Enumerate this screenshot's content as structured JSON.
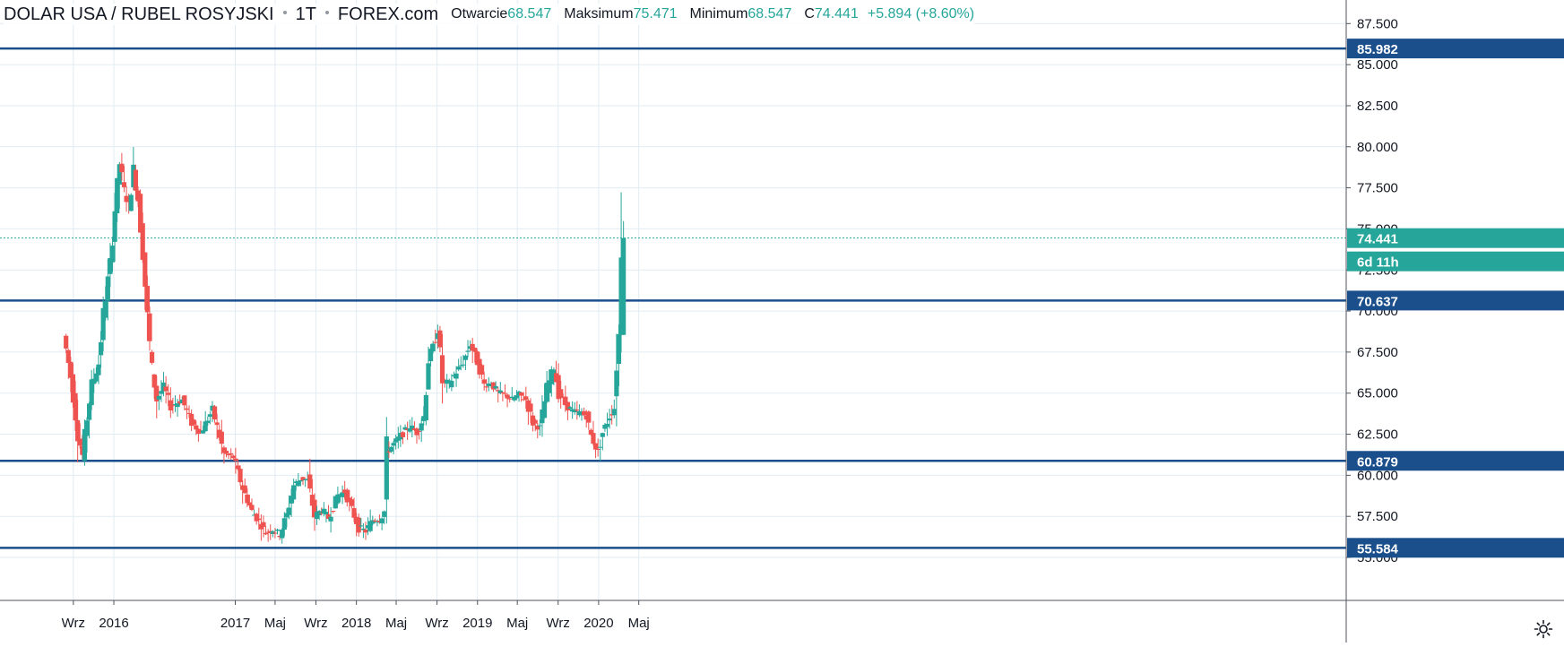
{
  "header": {
    "symbol": "DOLAR USA / RUBEL ROSYJSKI",
    "interval": "1T",
    "exchange": "FOREX.com",
    "open_label": "Otwarcie",
    "open_value": "68.547",
    "high_label": "Maksimum",
    "high_value": "75.471",
    "low_label": "Minimum",
    "low_value": "68.547",
    "close_label": "C",
    "close_value": "74.441",
    "change": "+5.894 (+8.60%)"
  },
  "countdown": "6d 11h",
  "colors": {
    "up": "#26a69a",
    "down": "#ef5350",
    "level_line": "#1b4f8c",
    "grid": "#e1ecf2",
    "axis_text": "#131722"
  },
  "icons": {
    "settings": "gear-icon"
  },
  "chart_data": {
    "type": "candlestick",
    "timeframe": "weekly",
    "y_axis": {
      "range": [
        52.5,
        88.5
      ],
      "ticks": [
        "55.000",
        "57.500",
        "60.000",
        "62.500",
        "65.000",
        "67.500",
        "70.000",
        "72.500",
        "75.000",
        "77.500",
        "80.000",
        "82.500",
        "85.000",
        "87.500"
      ]
    },
    "x_axis": {
      "ticks": [
        {
          "label": "Wrz",
          "date": "2015-09-01"
        },
        {
          "label": "2016",
          "date": "2016-01-01"
        },
        {
          "label": "2017",
          "date": "2017-01-01"
        },
        {
          "label": "Maj",
          "date": "2017-05-01"
        },
        {
          "label": "Wrz",
          "date": "2017-09-01"
        },
        {
          "label": "2018",
          "date": "2018-01-01"
        },
        {
          "label": "Maj",
          "date": "2018-05-01"
        },
        {
          "label": "Wrz",
          "date": "2018-09-01"
        },
        {
          "label": "2019",
          "date": "2019-01-01"
        },
        {
          "label": "Maj",
          "date": "2019-05-01"
        },
        {
          "label": "Wrz",
          "date": "2019-09-01"
        },
        {
          "label": "2020",
          "date": "2020-01-01"
        },
        {
          "label": "Maj",
          "date": "2020-05-01"
        }
      ]
    },
    "grid": true,
    "levels": [
      {
        "value": 85.982,
        "label": "85.982"
      },
      {
        "value": 70.637,
        "label": "70.637"
      },
      {
        "value": 60.879,
        "label": "60.879"
      },
      {
        "value": 55.584,
        "label": "55.584"
      }
    ],
    "last_price": {
      "value": 74.441,
      "label": "74.441"
    },
    "series_anchors": [
      {
        "date": "2015-08-10",
        "close": 68.5
      },
      {
        "date": "2015-08-31",
        "close": 66.0
      },
      {
        "date": "2015-09-21",
        "close": 62.5
      },
      {
        "date": "2015-10-05",
        "close": 61.2
      },
      {
        "date": "2015-10-19",
        "close": 63.5
      },
      {
        "date": "2015-11-02",
        "close": 65.5
      },
      {
        "date": "2015-11-23",
        "close": 66.8
      },
      {
        "date": "2015-12-07",
        "close": 69.8
      },
      {
        "date": "2015-12-28",
        "close": 72.9
      },
      {
        "date": "2016-01-11",
        "close": 76.2
      },
      {
        "date": "2016-01-25",
        "close": 79.0
      },
      {
        "date": "2016-02-08",
        "close": 77.3
      },
      {
        "date": "2016-02-22",
        "close": 76.4
      },
      {
        "date": "2016-03-07",
        "close": 78.6
      },
      {
        "date": "2016-03-21",
        "close": 76.8
      },
      {
        "date": "2016-04-04",
        "close": 73.6
      },
      {
        "date": "2016-04-18",
        "close": 69.6
      },
      {
        "date": "2016-05-02",
        "close": 66.4
      },
      {
        "date": "2016-05-16",
        "close": 64.6
      },
      {
        "date": "2016-06-06",
        "close": 65.4
      },
      {
        "date": "2016-06-27",
        "close": 64.2
      },
      {
        "date": "2016-08-01",
        "close": 64.6
      },
      {
        "date": "2016-08-29",
        "close": 63.2
      },
      {
        "date": "2016-09-26",
        "close": 62.6
      },
      {
        "date": "2016-10-31",
        "close": 64.0
      },
      {
        "date": "2016-12-05",
        "close": 61.3
      },
      {
        "date": "2017-01-02",
        "close": 61.1
      },
      {
        "date": "2017-01-30",
        "close": 59.2
      },
      {
        "date": "2017-02-27",
        "close": 57.8
      },
      {
        "date": "2017-03-20",
        "close": 57.2
      },
      {
        "date": "2017-04-10",
        "close": 56.5
      },
      {
        "date": "2017-05-01",
        "close": 56.7
      },
      {
        "date": "2017-05-22",
        "close": 56.4
      },
      {
        "date": "2017-06-12",
        "close": 57.6
      },
      {
        "date": "2017-07-03",
        "close": 59.4
      },
      {
        "date": "2017-07-24",
        "close": 59.8
      },
      {
        "date": "2017-08-14",
        "close": 59.7
      },
      {
        "date": "2017-09-04",
        "close": 57.5
      },
      {
        "date": "2017-09-25",
        "close": 57.9
      },
      {
        "date": "2017-10-16",
        "close": 57.4
      },
      {
        "date": "2017-11-13",
        "close": 58.8
      },
      {
        "date": "2017-12-04",
        "close": 59.0
      },
      {
        "date": "2017-12-25",
        "close": 57.9
      },
      {
        "date": "2018-01-15",
        "close": 56.8
      },
      {
        "date": "2018-02-05",
        "close": 56.6
      },
      {
        "date": "2018-02-26",
        "close": 57.3
      },
      {
        "date": "2018-03-19",
        "close": 57.3
      },
      {
        "date": "2018-04-02",
        "close": 57.8
      },
      {
        "date": "2018-04-09",
        "close": 61.4
      },
      {
        "date": "2018-04-30",
        "close": 61.9
      },
      {
        "date": "2018-05-21",
        "close": 62.4
      },
      {
        "date": "2018-06-18",
        "close": 63.0
      },
      {
        "date": "2018-07-09",
        "close": 62.6
      },
      {
        "date": "2018-07-30",
        "close": 63.6
      },
      {
        "date": "2018-08-13",
        "close": 67.1
      },
      {
        "date": "2018-08-27",
        "close": 67.8
      },
      {
        "date": "2018-09-10",
        "close": 68.9
      },
      {
        "date": "2018-09-24",
        "close": 65.7
      },
      {
        "date": "2018-10-15",
        "close": 65.6
      },
      {
        "date": "2018-11-05",
        "close": 66.3
      },
      {
        "date": "2018-11-26",
        "close": 66.9
      },
      {
        "date": "2018-12-17",
        "close": 68.0
      },
      {
        "date": "2019-01-07",
        "close": 66.9
      },
      {
        "date": "2019-01-28",
        "close": 65.5
      },
      {
        "date": "2019-02-18",
        "close": 65.6
      },
      {
        "date": "2019-03-11",
        "close": 65.0
      },
      {
        "date": "2019-04-01",
        "close": 64.9
      },
      {
        "date": "2019-04-22",
        "close": 64.6
      },
      {
        "date": "2019-05-13",
        "close": 64.9
      },
      {
        "date": "2019-06-03",
        "close": 64.6
      },
      {
        "date": "2019-06-24",
        "close": 63.2
      },
      {
        "date": "2019-07-15",
        "close": 62.9
      },
      {
        "date": "2019-08-05",
        "close": 65.3
      },
      {
        "date": "2019-08-26",
        "close": 66.6
      },
      {
        "date": "2019-09-09",
        "close": 65.0
      },
      {
        "date": "2019-09-30",
        "close": 64.3
      },
      {
        "date": "2019-10-21",
        "close": 63.9
      },
      {
        "date": "2019-11-11",
        "close": 63.8
      },
      {
        "date": "2019-12-02",
        "close": 63.6
      },
      {
        "date": "2019-12-16",
        "close": 62.4
      },
      {
        "date": "2020-01-06",
        "close": 61.4
      },
      {
        "date": "2020-01-20",
        "close": 62.6
      },
      {
        "date": "2020-02-10",
        "close": 63.6
      },
      {
        "date": "2020-02-24",
        "close": 64.1
      },
      {
        "date": "2020-03-02",
        "close": 66.9
      },
      {
        "date": "2020-03-09",
        "close": 68.547
      },
      {
        "date": "2020-03-16",
        "open": 68.547,
        "high": 75.471,
        "low": 68.547,
        "close": 74.441
      }
    ]
  }
}
